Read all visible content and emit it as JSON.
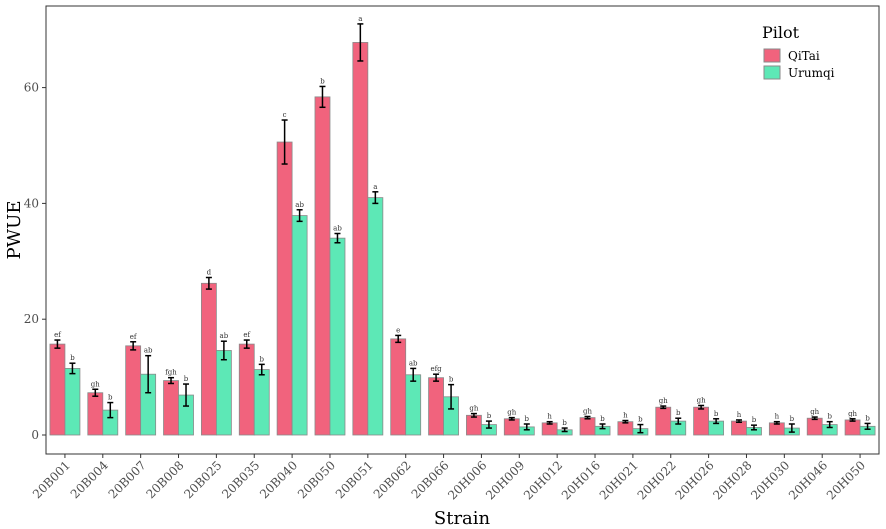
{
  "chart_data": {
    "type": "bar",
    "title": "",
    "xlabel": "Strain",
    "ylabel": "PWUE",
    "ylim": [
      0,
      72
    ],
    "yticks": [
      0,
      20,
      40,
      60
    ],
    "grid": false,
    "legend": {
      "title": "Pilot",
      "position": "top-right"
    },
    "colors": {
      "QiTai": "#f1637d",
      "Urumqi": "#5de8b6",
      "bar_edge": "#8a8a8a",
      "error_bar": "#000000",
      "axis": "#333333"
    },
    "categories": [
      "20B001",
      "20B004",
      "20B007",
      "20B008",
      "20B025",
      "20B035",
      "20B040",
      "20B050",
      "20B051",
      "20B062",
      "20B066",
      "20H006",
      "20H009",
      "20H012",
      "20H016",
      "20H021",
      "20H022",
      "20H026",
      "20H028",
      "20H030",
      "20H046",
      "20H050"
    ],
    "series": [
      {
        "name": "QiTai",
        "values": [
          15.7,
          7.3,
          15.4,
          9.4,
          26.2,
          15.7,
          50.6,
          58.4,
          67.8,
          16.6,
          9.9,
          3.4,
          2.8,
          2.1,
          3.0,
          2.3,
          4.8,
          4.8,
          2.4,
          2.1,
          2.9,
          2.6
        ],
        "errors": [
          0.7,
          0.6,
          0.7,
          0.5,
          1.0,
          0.7,
          3.8,
          1.8,
          3.2,
          0.6,
          0.6,
          0.3,
          0.2,
          0.2,
          0.2,
          0.2,
          0.2,
          0.3,
          0.2,
          0.2,
          0.2,
          0.2
        ],
        "labels": [
          "ef",
          "gh",
          "ef",
          "fgh",
          "d",
          "ef",
          "c",
          "b",
          "a",
          "e",
          "efg",
          "gh",
          "gh",
          "h",
          "gh",
          "h",
          "gh",
          "gh",
          "h",
          "h",
          "gh",
          "gh"
        ]
      },
      {
        "name": "Urumqi",
        "values": [
          11.5,
          4.3,
          10.5,
          6.9,
          14.6,
          11.3,
          37.9,
          34.0,
          41.0,
          10.4,
          6.6,
          1.8,
          1.4,
          0.9,
          1.5,
          1.1,
          2.4,
          2.4,
          1.3,
          1.2,
          1.8,
          1.5
        ],
        "errors": [
          0.9,
          1.3,
          3.2,
          1.9,
          1.6,
          0.9,
          1.0,
          0.8,
          1.0,
          1.1,
          2.1,
          0.6,
          0.5,
          0.3,
          0.4,
          0.7,
          0.5,
          0.4,
          0.4,
          0.7,
          0.5,
          0.5
        ],
        "labels": [
          "b",
          "b",
          "ab",
          "b",
          "ab",
          "b",
          "ab",
          "ab",
          "a",
          "ab",
          "b",
          "b",
          "b",
          "b",
          "b",
          "b",
          "b",
          "b",
          "b",
          "b",
          "b",
          "b"
        ]
      }
    ]
  }
}
